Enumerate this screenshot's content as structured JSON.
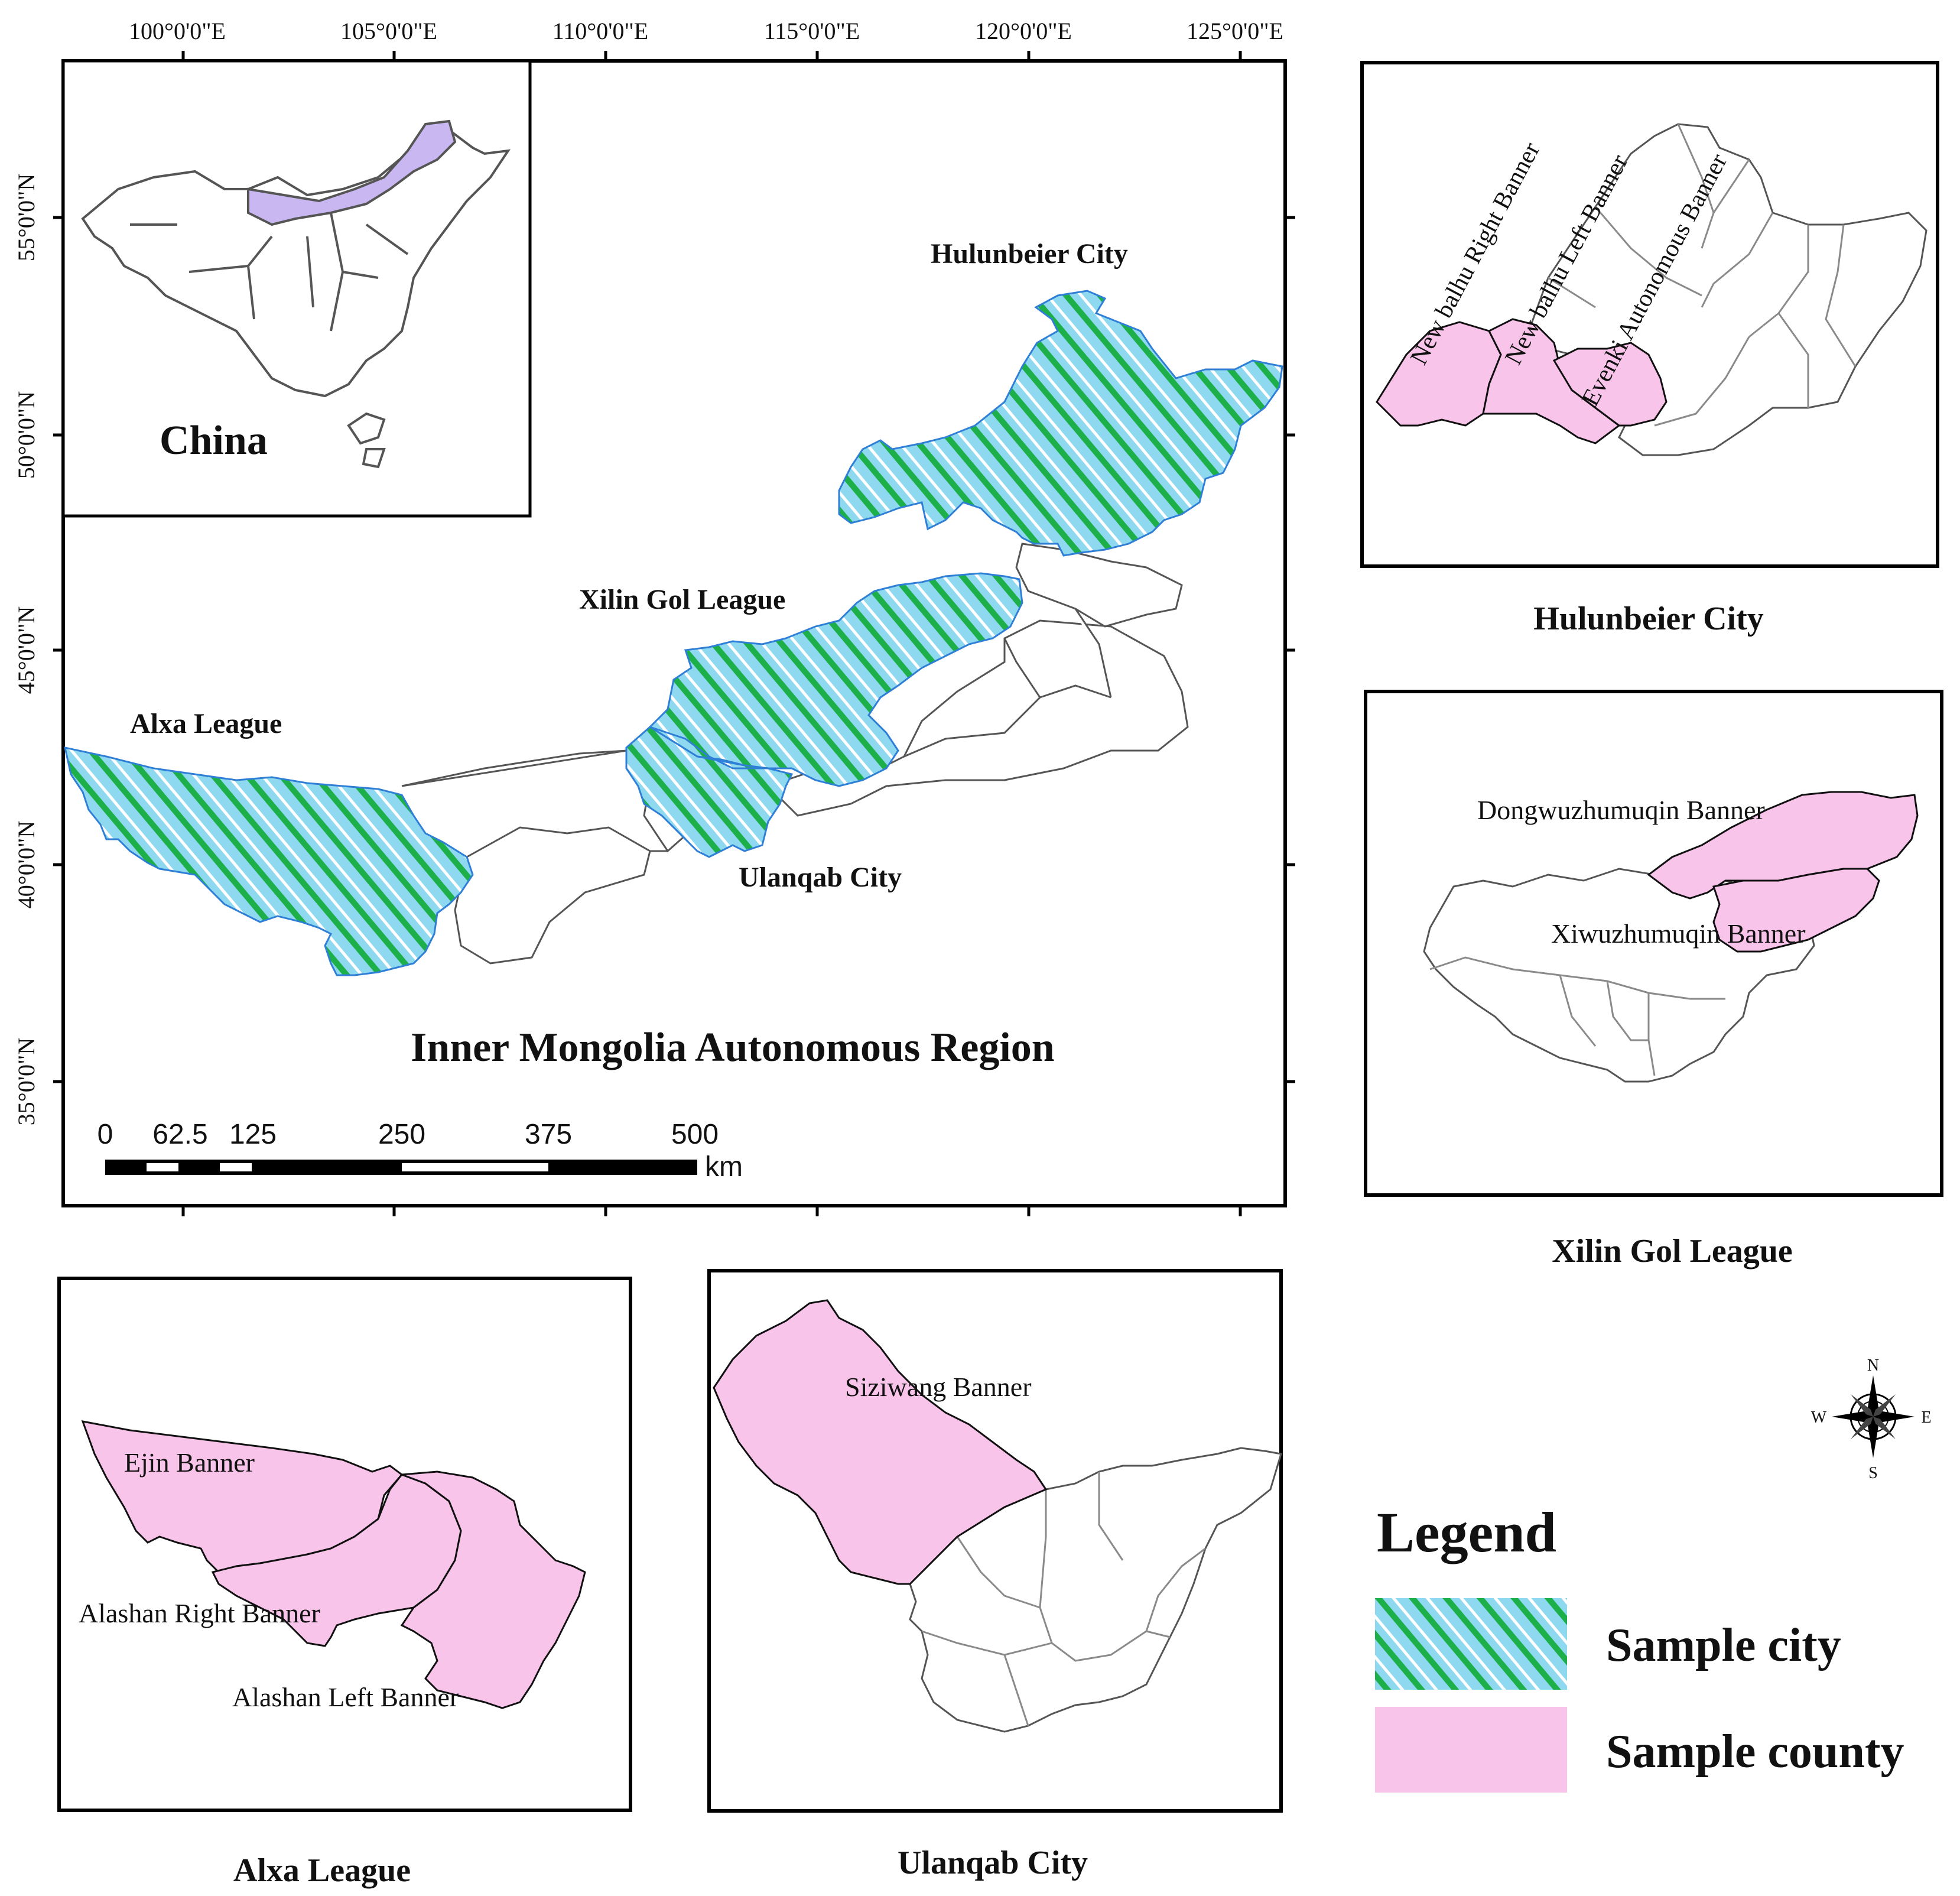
{
  "colors": {
    "sample_city_hatch": [
      "#1db04a",
      "#8fd9f0"
    ],
    "sample_county_fill": "#f9c4ea",
    "china_highlight": "#c9b7f2",
    "region_outline": "#2f7fd6"
  },
  "main_map": {
    "lon_ticks": [
      "100°0'0\"E",
      "105°0'0\"E",
      "110°0'0\"E",
      "115°0'0\"E",
      "120°0'0\"E",
      "125°0'0\"E"
    ],
    "lat_ticks": [
      "55°0'0\"N",
      "50°0'0\"N",
      "45°0'0\"N",
      "40°0'0\"N",
      "35°0'0\"N"
    ],
    "inset_label": "China",
    "region_title": "Inner Mongolia Autonomous Region",
    "city_labels": {
      "hulunbeier": "Hulunbeier City",
      "xilingol": "Xilin Gol League",
      "alxa": "Alxa League",
      "ulanqab": "Ulanqab City"
    },
    "scale_bar": {
      "labels": [
        "0",
        "62.5",
        "125",
        "250",
        "375",
        "500"
      ],
      "unit": "km"
    }
  },
  "insets": {
    "hulunbeier": {
      "caption": "Hulunbeier City",
      "counties": [
        "New balhu Right Banner",
        "New balhu Left Banner",
        "Evenki Autonomous Banner"
      ]
    },
    "xilingol": {
      "caption": "Xilin Gol League",
      "counties": [
        "Dongwuzhumuqin Banner",
        "Xiwuzhumuqin Banner"
      ]
    },
    "alxa": {
      "caption": "Alxa League",
      "counties": [
        "Ejin Banner",
        "Alashan Right Banner",
        "Alashan Left Banner"
      ]
    },
    "ulanqab": {
      "caption": "Ulanqab City",
      "counties": [
        "Siziwang Banner"
      ]
    }
  },
  "compass": {
    "n": "N",
    "s": "S",
    "e": "E",
    "w": "W",
    "icon": "compass-rose-icon"
  },
  "legend": {
    "title": "Legend",
    "items": [
      "Sample city",
      "Sample county"
    ]
  }
}
